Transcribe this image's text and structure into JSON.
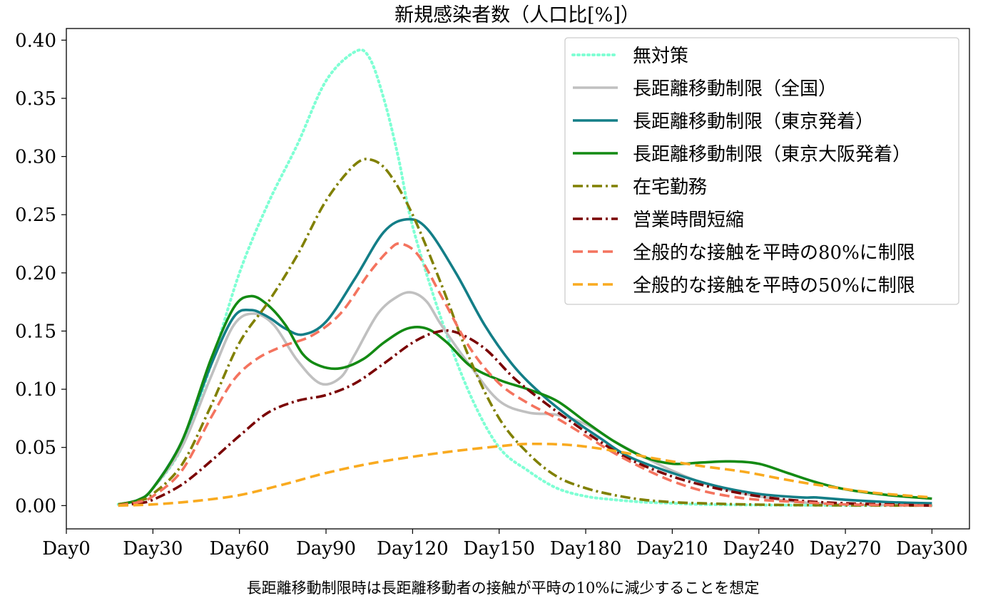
{
  "chart_data": {
    "type": "line",
    "title": "新規感染者数（人口比[%]）",
    "caption": "長距離移動制限時は長距離移動者の接触が平時の10%に減少することを想定",
    "xlabel": "",
    "ylabel": "",
    "x_ticks": [
      {
        "value": 0,
        "label": "Day0"
      },
      {
        "value": 30,
        "label": "Day30"
      },
      {
        "value": 60,
        "label": "Day60"
      },
      {
        "value": 90,
        "label": "Day90"
      },
      {
        "value": 120,
        "label": "Day120"
      },
      {
        "value": 150,
        "label": "Day150"
      },
      {
        "value": 180,
        "label": "Day180"
      },
      {
        "value": 210,
        "label": "Day210"
      },
      {
        "value": 240,
        "label": "Day240"
      },
      {
        "value": 270,
        "label": "Day270"
      },
      {
        "value": 300,
        "label": "Day300"
      }
    ],
    "y_ticks": [
      {
        "value": 0.0,
        "label": "0.00"
      },
      {
        "value": 0.05,
        "label": "0.05"
      },
      {
        "value": 0.1,
        "label": "0.10"
      },
      {
        "value": 0.15,
        "label": "0.15"
      },
      {
        "value": 0.2,
        "label": "0.20"
      },
      {
        "value": 0.25,
        "label": "0.25"
      },
      {
        "value": 0.3,
        "label": "0.30"
      },
      {
        "value": 0.35,
        "label": "0.35"
      },
      {
        "value": 0.4,
        "label": "0.40"
      }
    ],
    "xlim": [
      0,
      313
    ],
    "ylim": [
      -0.02,
      0.41
    ],
    "grid": false,
    "legend_position": "top-right",
    "series": [
      {
        "name": "無対策",
        "color": "#7fffd4",
        "style": "dotted",
        "points": [
          [
            18,
            0.001
          ],
          [
            25,
            0.005
          ],
          [
            30,
            0.015
          ],
          [
            40,
            0.05
          ],
          [
            50,
            0.12
          ],
          [
            60,
            0.2
          ],
          [
            70,
            0.26
          ],
          [
            80,
            0.31
          ],
          [
            90,
            0.365
          ],
          [
            100,
            0.39
          ],
          [
            105,
            0.385
          ],
          [
            110,
            0.35
          ],
          [
            115,
            0.3
          ],
          [
            120,
            0.24
          ],
          [
            130,
            0.16
          ],
          [
            140,
            0.095
          ],
          [
            150,
            0.05
          ],
          [
            160,
            0.03
          ],
          [
            170,
            0.015
          ],
          [
            180,
            0.008
          ],
          [
            190,
            0.005
          ],
          [
            200,
            0.003
          ],
          [
            210,
            0.002
          ],
          [
            220,
            0.001
          ],
          [
            240,
            0.0005
          ],
          [
            270,
            0.0001
          ],
          [
            300,
            0.0
          ]
        ]
      },
      {
        "name": "長距離移動制限（全国）",
        "color": "#c0c0c0",
        "style": "solid",
        "points": [
          [
            18,
            0.001
          ],
          [
            25,
            0.005
          ],
          [
            30,
            0.015
          ],
          [
            40,
            0.05
          ],
          [
            50,
            0.11
          ],
          [
            58,
            0.155
          ],
          [
            65,
            0.165
          ],
          [
            72,
            0.155
          ],
          [
            80,
            0.125
          ],
          [
            88,
            0.105
          ],
          [
            95,
            0.11
          ],
          [
            100,
            0.13
          ],
          [
            108,
            0.165
          ],
          [
            115,
            0.18
          ],
          [
            120,
            0.183
          ],
          [
            125,
            0.175
          ],
          [
            130,
            0.155
          ],
          [
            140,
            0.12
          ],
          [
            150,
            0.09
          ],
          [
            160,
            0.08
          ],
          [
            170,
            0.078
          ],
          [
            180,
            0.07
          ],
          [
            190,
            0.055
          ],
          [
            200,
            0.042
          ],
          [
            210,
            0.03
          ],
          [
            220,
            0.02
          ],
          [
            230,
            0.013
          ],
          [
            240,
            0.008
          ],
          [
            250,
            0.004
          ],
          [
            260,
            0.002
          ],
          [
            270,
            0.001
          ],
          [
            300,
            0.0
          ]
        ]
      },
      {
        "name": "長距離移動制限（東京発着）",
        "color": "#137e87",
        "style": "solid",
        "points": [
          [
            18,
            0.001
          ],
          [
            25,
            0.005
          ],
          [
            30,
            0.015
          ],
          [
            40,
            0.055
          ],
          [
            50,
            0.12
          ],
          [
            58,
            0.162
          ],
          [
            64,
            0.168
          ],
          [
            70,
            0.162
          ],
          [
            76,
            0.152
          ],
          [
            82,
            0.147
          ],
          [
            90,
            0.158
          ],
          [
            100,
            0.195
          ],
          [
            110,
            0.235
          ],
          [
            118,
            0.246
          ],
          [
            125,
            0.238
          ],
          [
            135,
            0.2
          ],
          [
            145,
            0.155
          ],
          [
            155,
            0.12
          ],
          [
            165,
            0.095
          ],
          [
            175,
            0.075
          ],
          [
            185,
            0.058
          ],
          [
            195,
            0.042
          ],
          [
            210,
            0.028
          ],
          [
            225,
            0.017
          ],
          [
            240,
            0.01
          ],
          [
            255,
            0.007
          ],
          [
            260,
            0.007
          ],
          [
            270,
            0.005
          ],
          [
            285,
            0.003
          ],
          [
            300,
            0.002
          ]
        ]
      },
      {
        "name": "長距離移動制限（東京大阪発着）",
        "color": "#138a13",
        "style": "solid",
        "points": [
          [
            18,
            0.001
          ],
          [
            25,
            0.005
          ],
          [
            30,
            0.015
          ],
          [
            40,
            0.055
          ],
          [
            50,
            0.125
          ],
          [
            58,
            0.17
          ],
          [
            64,
            0.18
          ],
          [
            70,
            0.172
          ],
          [
            76,
            0.155
          ],
          [
            82,
            0.13
          ],
          [
            88,
            0.12
          ],
          [
            95,
            0.118
          ],
          [
            103,
            0.126
          ],
          [
            110,
            0.14
          ],
          [
            118,
            0.152
          ],
          [
            125,
            0.152
          ],
          [
            132,
            0.14
          ],
          [
            140,
            0.12
          ],
          [
            150,
            0.108
          ],
          [
            160,
            0.1
          ],
          [
            170,
            0.09
          ],
          [
            180,
            0.072
          ],
          [
            190,
            0.055
          ],
          [
            200,
            0.042
          ],
          [
            210,
            0.036
          ],
          [
            220,
            0.037
          ],
          [
            230,
            0.038
          ],
          [
            240,
            0.036
          ],
          [
            250,
            0.028
          ],
          [
            260,
            0.02
          ],
          [
            270,
            0.014
          ],
          [
            285,
            0.009
          ],
          [
            300,
            0.006
          ]
        ]
      },
      {
        "name": "在宅勤務",
        "color": "#808000",
        "style": "dashdot",
        "points": [
          [
            18,
            0.001
          ],
          [
            25,
            0.004
          ],
          [
            30,
            0.01
          ],
          [
            40,
            0.035
          ],
          [
            50,
            0.085
          ],
          [
            60,
            0.14
          ],
          [
            70,
            0.175
          ],
          [
            80,
            0.215
          ],
          [
            90,
            0.262
          ],
          [
            100,
            0.293
          ],
          [
            106,
            0.297
          ],
          [
            112,
            0.285
          ],
          [
            120,
            0.25
          ],
          [
            130,
            0.19
          ],
          [
            140,
            0.125
          ],
          [
            150,
            0.075
          ],
          [
            160,
            0.045
          ],
          [
            170,
            0.025
          ],
          [
            180,
            0.015
          ],
          [
            190,
            0.009
          ],
          [
            200,
            0.005
          ],
          [
            210,
            0.003
          ],
          [
            220,
            0.002
          ],
          [
            240,
            0.0008
          ],
          [
            270,
            0.0002
          ],
          [
            300,
            0.0
          ]
        ]
      },
      {
        "name": "営業時間短縮",
        "color": "#7a0000",
        "style": "dashdot",
        "points": [
          [
            18,
            0.0
          ],
          [
            25,
            0.002
          ],
          [
            30,
            0.005
          ],
          [
            40,
            0.018
          ],
          [
            50,
            0.038
          ],
          [
            60,
            0.06
          ],
          [
            70,
            0.08
          ],
          [
            80,
            0.09
          ],
          [
            90,
            0.095
          ],
          [
            100,
            0.105
          ],
          [
            110,
            0.122
          ],
          [
            120,
            0.14
          ],
          [
            128,
            0.149
          ],
          [
            135,
            0.149
          ],
          [
            145,
            0.135
          ],
          [
            155,
            0.11
          ],
          [
            165,
            0.09
          ],
          [
            175,
            0.072
          ],
          [
            185,
            0.055
          ],
          [
            195,
            0.04
          ],
          [
            210,
            0.025
          ],
          [
            225,
            0.015
          ],
          [
            240,
            0.008
          ],
          [
            255,
            0.004
          ],
          [
            270,
            0.002
          ],
          [
            285,
            0.001
          ],
          [
            300,
            0.0
          ]
        ]
      },
      {
        "name": "全般的な接触を平時の80%に制限",
        "color": "#f4735e",
        "style": "dashed",
        "points": [
          [
            18,
            0.0
          ],
          [
            25,
            0.003
          ],
          [
            30,
            0.008
          ],
          [
            40,
            0.03
          ],
          [
            50,
            0.075
          ],
          [
            58,
            0.108
          ],
          [
            66,
            0.126
          ],
          [
            75,
            0.137
          ],
          [
            85,
            0.146
          ],
          [
            95,
            0.165
          ],
          [
            105,
            0.2
          ],
          [
            112,
            0.22
          ],
          [
            116,
            0.225
          ],
          [
            122,
            0.215
          ],
          [
            130,
            0.18
          ],
          [
            140,
            0.135
          ],
          [
            150,
            0.105
          ],
          [
            160,
            0.088
          ],
          [
            170,
            0.075
          ],
          [
            180,
            0.06
          ],
          [
            190,
            0.045
          ],
          [
            200,
            0.032
          ],
          [
            210,
            0.021
          ],
          [
            220,
            0.013
          ],
          [
            230,
            0.008
          ],
          [
            240,
            0.005
          ],
          [
            255,
            0.003
          ],
          [
            270,
            0.001
          ],
          [
            300,
            0.0
          ]
        ]
      },
      {
        "name": "全般的な接触を平時の50%に制限",
        "color": "#f9aa1f",
        "style": "dashed",
        "points": [
          [
            18,
            0.0
          ],
          [
            30,
            0.001
          ],
          [
            45,
            0.004
          ],
          [
            60,
            0.009
          ],
          [
            75,
            0.018
          ],
          [
            90,
            0.028
          ],
          [
            105,
            0.036
          ],
          [
            120,
            0.042
          ],
          [
            135,
            0.047
          ],
          [
            150,
            0.051
          ],
          [
            160,
            0.053
          ],
          [
            175,
            0.052
          ],
          [
            190,
            0.047
          ],
          [
            205,
            0.04
          ],
          [
            220,
            0.034
          ],
          [
            235,
            0.029
          ],
          [
            250,
            0.022
          ],
          [
            265,
            0.016
          ],
          [
            280,
            0.011
          ],
          [
            300,
            0.007
          ]
        ]
      }
    ]
  }
}
